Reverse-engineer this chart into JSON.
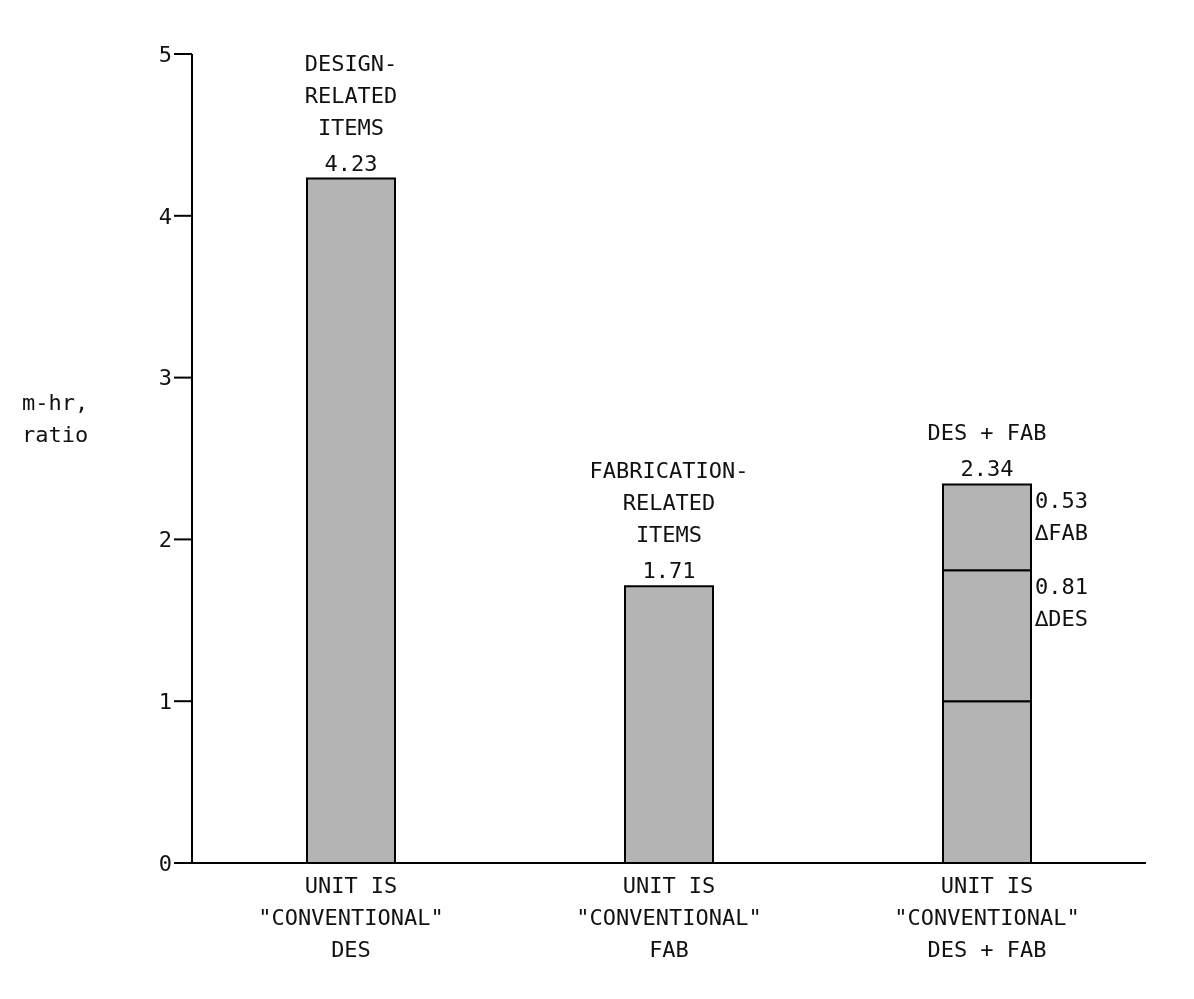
{
  "chart_data": {
    "type": "bar",
    "ylabel": "m-hr,\nratio",
    "categories": [
      "UNIT IS\n\"CONVENTIONAL\"\nDES",
      "UNIT IS\n\"CONVENTIONAL\"\nFAB",
      "UNIT IS\n\"CONVENTIONAL\"\nDES + FAB"
    ],
    "series": [
      {
        "color": "#b4b4b4",
        "values": [
          4.23,
          1.71,
          1.0
        ]
      },
      {
        "color": "#b4b4b4",
        "values": [
          null,
          null,
          0.81
        ]
      },
      {
        "color": "#b4b4b4",
        "values": [
          null,
          null,
          0.53
        ]
      }
    ],
    "stacked": true,
    "ylim": [
      0,
      5
    ],
    "yticks": [
      0,
      1,
      2,
      3,
      4,
      5
    ],
    "grid": false,
    "legend": false,
    "totals": [
      "4.23",
      "1.71",
      "2.34"
    ],
    "annotations": [
      {
        "text": "DESIGN-\nRELATED\nITEMS",
        "x": "UNIT IS\n\"CONVENTIONAL\"\nDES",
        "y": 4.23
      },
      {
        "text": "FABRICATION-\nRELATED\nITEMS",
        "x": "UNIT IS\n\"CONVENTIONAL\"\nFAB",
        "y": 1.71
      },
      {
        "text": "DES + FAB",
        "x": "UNIT IS\n\"CONVENTIONAL\"\nDES + FAB",
        "y": 2.34
      },
      "0.53\n∆FAB",
      "0.81\n∆DES"
    ]
  }
}
